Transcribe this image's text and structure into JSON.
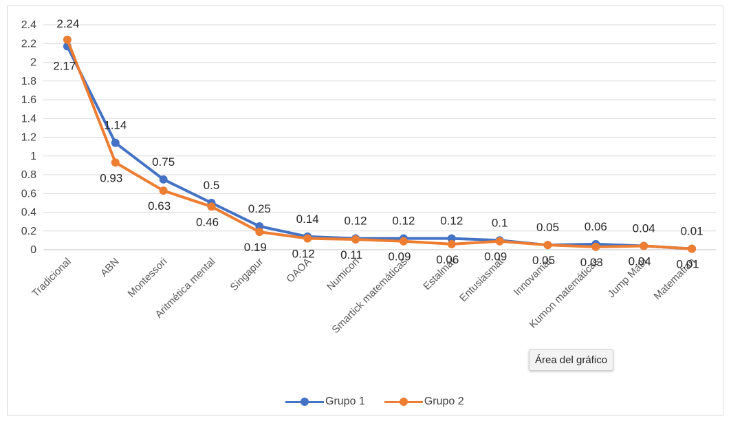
{
  "chart_data": {
    "type": "line",
    "categories": [
      "Tradicional",
      "ABN",
      "Montessori",
      "Aritmética mental",
      "Singapur",
      "OAOA",
      "Numicon",
      "Smartick matemáticas",
      "Estalmat",
      "Entusiasmat",
      "Innovamat",
      "Kumon matemáticas",
      "Jump Math",
      "Matematian"
    ],
    "series": [
      {
        "name": "Grupo 1",
        "color": "#4472c4",
        "values": [
          2.17,
          1.14,
          0.75,
          0.5,
          0.25,
          0.14,
          0.12,
          0.12,
          0.12,
          0.1,
          0.05,
          0.06,
          0.04,
          0.01
        ],
        "labels": [
          "2.17",
          "1.14",
          "0.75",
          "0.5",
          "0.25",
          "0.14",
          "0.12",
          "0.12",
          "0.12",
          "0.1",
          "0.05",
          "0.06",
          "0.04",
          "0.01"
        ]
      },
      {
        "name": "Grupo 2",
        "color": "#ed7d31",
        "values": [
          2.24,
          0.93,
          0.63,
          0.46,
          0.19,
          0.12,
          0.11,
          0.09,
          0.06,
          0.09,
          0.05,
          0.03,
          0.04,
          0.01
        ],
        "labels": [
          "2.24",
          "0.93",
          "0.63",
          "0.46",
          "0.19",
          "0.12",
          "0.11",
          "0.09",
          "0.06",
          "0.09",
          "0.05",
          "0.03",
          "0.04",
          "0.01"
        ]
      }
    ],
    "y_ticks": [
      "0",
      "0.2",
      "0.4",
      "0.6",
      "0.8",
      "1",
      "1.2",
      "1.4",
      "1.6",
      "1.8",
      "2",
      "2.2",
      "2.4"
    ],
    "ylim": [
      0,
      2.4
    ],
    "title": "",
    "xlabel": "",
    "ylabel": "",
    "grid": true,
    "legend_position": "bottom"
  },
  "tooltip": {
    "text": "Área del gráfico"
  }
}
